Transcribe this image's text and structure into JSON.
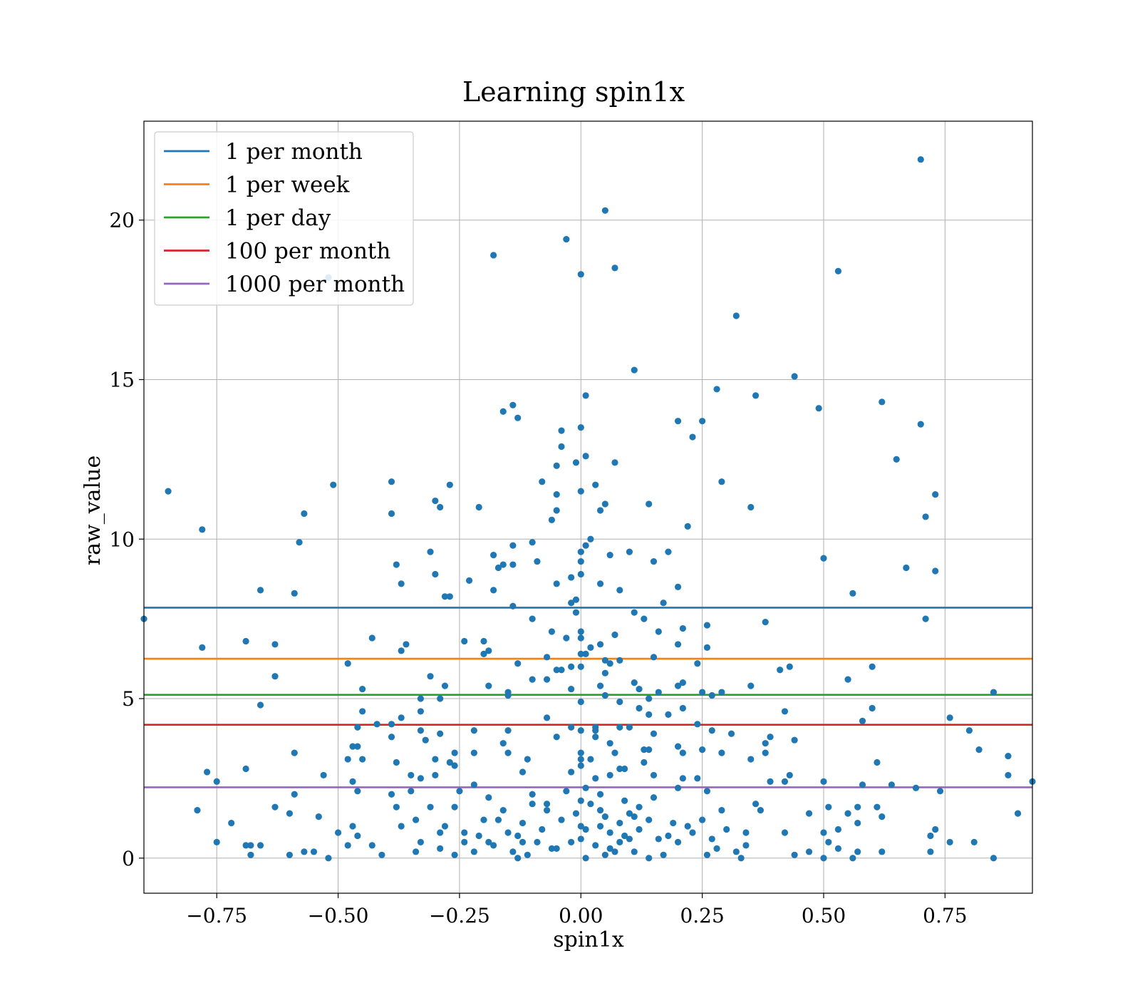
{
  "chart_data": {
    "type": "scatter",
    "title": "Learning spin1x",
    "xlabel": "spin1x",
    "ylabel": "raw_value",
    "xlim": [
      -0.9,
      0.93
    ],
    "ylim": [
      -1.1,
      23.1
    ],
    "xticks": [
      -0.75,
      -0.5,
      -0.25,
      0.0,
      0.25,
      0.5,
      0.75
    ],
    "xtick_labels": [
      "−0.75",
      "−0.50",
      "−0.25",
      "0.00",
      "0.25",
      "0.50",
      "0.75"
    ],
    "yticks": [
      0,
      5,
      10,
      15,
      20
    ],
    "ytick_labels": [
      "0",
      "5",
      "10",
      "15",
      "20"
    ],
    "grid": true,
    "legend_position": "top-left",
    "marker_color": "#1f77b4",
    "hlines": [
      {
        "name": "1 per month",
        "y": 7.85,
        "color": "#1f77b4"
      },
      {
        "name": "1 per week",
        "y": 6.25,
        "color": "#ff7f0e"
      },
      {
        "name": "1 per day",
        "y": 5.12,
        "color": "#2ca02c"
      },
      {
        "name": "100 per month",
        "y": 4.18,
        "color": "#d62728"
      },
      {
        "name": "1000 per month",
        "y": 2.22,
        "color": "#9467bd"
      }
    ],
    "points": [
      [
        0.7,
        21.9
      ],
      [
        0.05,
        20.3
      ],
      [
        -0.03,
        19.4
      ],
      [
        -0.18,
        18.9
      ],
      [
        0.07,
        18.5
      ],
      [
        0.0,
        18.3
      ],
      [
        0.53,
        18.4
      ],
      [
        -0.52,
        18.2
      ],
      [
        0.32,
        17.0
      ],
      [
        0.11,
        15.3
      ],
      [
        0.44,
        15.1
      ],
      [
        0.01,
        14.5
      ],
      [
        0.36,
        14.5
      ],
      [
        0.28,
        14.7
      ],
      [
        0.49,
        14.1
      ],
      [
        0.62,
        14.3
      ],
      [
        -0.14,
        14.2
      ],
      [
        -0.16,
        14.0
      ],
      [
        -0.13,
        13.8
      ],
      [
        0.2,
        13.7
      ],
      [
        0.25,
        13.7
      ],
      [
        0.7,
        13.6
      ],
      [
        -0.04,
        13.4
      ],
      [
        0.0,
        13.5
      ],
      [
        0.23,
        13.2
      ],
      [
        -0.04,
        12.9
      ],
      [
        0.65,
        12.5
      ],
      [
        0.01,
        12.6
      ],
      [
        -0.05,
        12.3
      ],
      [
        0.07,
        12.4
      ],
      [
        -0.01,
        12.4
      ],
      [
        0.29,
        11.8
      ],
      [
        -0.39,
        11.8
      ],
      [
        -0.27,
        11.7
      ],
      [
        -0.51,
        11.7
      ],
      [
        -0.08,
        11.8
      ],
      [
        0.03,
        11.7
      ],
      [
        -0.05,
        11.4
      ],
      [
        0.0,
        11.5
      ],
      [
        0.73,
        11.4
      ],
      [
        -0.85,
        11.5
      ],
      [
        -0.3,
        11.2
      ],
      [
        -0.29,
        11.0
      ],
      [
        -0.21,
        11.0
      ],
      [
        0.14,
        11.1
      ],
      [
        0.35,
        11.0
      ],
      [
        0.05,
        11.1
      ],
      [
        -0.05,
        10.9
      ],
      [
        -0.39,
        10.8
      ],
      [
        0.04,
        10.9
      ],
      [
        0.71,
        10.7
      ],
      [
        -0.57,
        10.8
      ],
      [
        -0.78,
        10.3
      ],
      [
        0.22,
        10.4
      ],
      [
        -0.06,
        10.6
      ],
      [
        -0.58,
        9.9
      ],
      [
        -0.1,
        9.9
      ],
      [
        0.02,
        10.0
      ],
      [
        0.01,
        9.8
      ],
      [
        -0.14,
        9.8
      ],
      [
        -0.31,
        9.6
      ],
      [
        0.18,
        9.6
      ],
      [
        0.06,
        9.5
      ],
      [
        0.1,
        9.6
      ],
      [
        -0.18,
        9.5
      ],
      [
        0.0,
        9.6
      ],
      [
        0.5,
        9.4
      ],
      [
        -0.09,
        9.3
      ],
      [
        0.0,
        9.3
      ],
      [
        0.15,
        9.3
      ],
      [
        -0.16,
        9.2
      ],
      [
        -0.14,
        9.2
      ],
      [
        -0.17,
        9.1
      ],
      [
        -0.38,
        9.2
      ],
      [
        0.67,
        9.1
      ],
      [
        0.73,
        9.0
      ],
      [
        -0.3,
        8.9
      ],
      [
        0.0,
        8.9
      ],
      [
        -0.02,
        8.8
      ],
      [
        -0.37,
        8.6
      ],
      [
        -0.23,
        8.7
      ],
      [
        -0.05,
        8.6
      ],
      [
        0.04,
        8.6
      ],
      [
        -0.66,
        8.4
      ],
      [
        -0.59,
        8.3
      ],
      [
        -0.18,
        8.4
      ],
      [
        0.08,
        8.4
      ],
      [
        0.2,
        8.5
      ],
      [
        0.56,
        8.3
      ],
      [
        -0.28,
        8.2
      ],
      [
        -0.27,
        8.2
      ],
      [
        -0.02,
        8.0
      ],
      [
        -0.01,
        8.1
      ],
      [
        0.17,
        8.0
      ],
      [
        -0.14,
        7.9
      ],
      [
        -0.01,
        7.7
      ],
      [
        0.11,
        7.7
      ],
      [
        -0.9,
        7.5
      ],
      [
        -0.1,
        7.5
      ],
      [
        0.13,
        7.5
      ],
      [
        0.71,
        7.5
      ],
      [
        0.38,
        7.4
      ],
      [
        0.26,
        7.3
      ],
      [
        -0.06,
        7.1
      ],
      [
        0.0,
        7.1
      ],
      [
        0.16,
        7.1
      ],
      [
        0.21,
        7.2
      ],
      [
        0.07,
        7.0
      ],
      [
        -0.03,
        6.9
      ],
      [
        0.0,
        6.9
      ],
      [
        -0.43,
        6.9
      ],
      [
        -0.2,
        6.8
      ],
      [
        -0.69,
        6.8
      ],
      [
        -0.63,
        6.7
      ],
      [
        -0.36,
        6.7
      ],
      [
        -0.24,
        6.8
      ],
      [
        0.04,
        6.7
      ],
      [
        0.02,
        6.6
      ],
      [
        0.2,
        6.7
      ],
      [
        0.26,
        6.6
      ],
      [
        -0.78,
        6.6
      ],
      [
        -0.37,
        6.5
      ],
      [
        -0.19,
        6.5
      ],
      [
        -0.2,
        6.4
      ],
      [
        0.0,
        6.4
      ],
      [
        0.01,
        6.4
      ],
      [
        0.05,
        6.2
      ],
      [
        -0.07,
        6.3
      ],
      [
        0.08,
        6.2
      ],
      [
        0.15,
        6.3
      ],
      [
        0.06,
        6.1
      ],
      [
        -0.48,
        6.1
      ],
      [
        -0.13,
        6.1
      ],
      [
        0.24,
        6.1
      ],
      [
        -0.02,
        6.0
      ],
      [
        0.0,
        6.0
      ],
      [
        0.43,
        6.0
      ],
      [
        0.41,
        5.9
      ],
      [
        0.6,
        6.0
      ],
      [
        -0.05,
        5.9
      ],
      [
        -0.04,
        5.9
      ],
      [
        0.05,
        5.8
      ],
      [
        -0.63,
        5.7
      ],
      [
        -0.31,
        5.7
      ],
      [
        -0.1,
        5.6
      ],
      [
        -0.07,
        5.6
      ],
      [
        0.55,
        5.6
      ],
      [
        0.11,
        5.5
      ],
      [
        0.21,
        5.5
      ],
      [
        -0.19,
        5.4
      ],
      [
        -0.28,
        5.4
      ],
      [
        0.04,
        5.4
      ],
      [
        0.2,
        5.4
      ],
      [
        0.35,
        5.4
      ],
      [
        -0.45,
        5.3
      ],
      [
        -0.02,
        5.3
      ],
      [
        0.12,
        5.3
      ],
      [
        0.25,
        5.2
      ],
      [
        0.29,
        5.2
      ],
      [
        0.16,
        5.2
      ],
      [
        -0.15,
        5.2
      ],
      [
        -0.15,
        5.1
      ],
      [
        0.27,
        5.1
      ],
      [
        0.85,
        5.2
      ],
      [
        -0.33,
        5.0
      ],
      [
        0.14,
        5.0
      ],
      [
        -0.29,
        5.0
      ],
      [
        0.0,
        4.9
      ],
      [
        0.05,
        5.1
      ],
      [
        0.08,
        4.9
      ],
      [
        -0.66,
        4.8
      ],
      [
        -0.33,
        4.6
      ],
      [
        -0.45,
        4.6
      ],
      [
        0.12,
        4.7
      ],
      [
        0.21,
        4.7
      ],
      [
        0.42,
        4.6
      ],
      [
        0.6,
        4.7
      ],
      [
        0.18,
        4.5
      ],
      [
        -0.37,
        4.4
      ],
      [
        -0.07,
        4.4
      ],
      [
        0.14,
        4.5
      ],
      [
        0.58,
        4.3
      ],
      [
        0.76,
        4.4
      ],
      [
        -0.42,
        4.2
      ],
      [
        -0.46,
        4.1
      ],
      [
        -0.39,
        4.2
      ],
      [
        0.24,
        4.2
      ],
      [
        0.08,
        4.1
      ],
      [
        -0.22,
        4.0
      ],
      [
        -0.02,
        4.1
      ],
      [
        0.03,
        4.1
      ],
      [
        0.1,
        4.1
      ],
      [
        -0.33,
        4.0
      ],
      [
        -0.15,
        4.0
      ],
      [
        0.0,
        4.0
      ],
      [
        0.03,
        4.0
      ],
      [
        0.27,
        4.0
      ],
      [
        0.31,
        3.9
      ],
      [
        0.15,
        3.9
      ],
      [
        0.8,
        4.0
      ],
      [
        -0.39,
        3.8
      ],
      [
        -0.29,
        3.9
      ],
      [
        -0.05,
        3.8
      ],
      [
        0.03,
        3.8
      ],
      [
        0.06,
        3.6
      ],
      [
        0.39,
        3.8
      ],
      [
        0.44,
        3.7
      ],
      [
        -0.32,
        3.7
      ],
      [
        -0.47,
        3.5
      ],
      [
        -0.46,
        3.5
      ],
      [
        -0.16,
        3.6
      ],
      [
        0.13,
        3.4
      ],
      [
        0.2,
        3.5
      ],
      [
        0.25,
        3.4
      ],
      [
        0.38,
        3.6
      ],
      [
        -0.59,
        3.3
      ],
      [
        -0.26,
        3.3
      ],
      [
        -0.22,
        3.3
      ],
      [
        -0.15,
        3.3
      ],
      [
        0.0,
        3.3
      ],
      [
        0.07,
        3.3
      ],
      [
        0.14,
        3.4
      ],
      [
        0.21,
        3.3
      ],
      [
        0.29,
        3.3
      ],
      [
        0.38,
        3.3
      ],
      [
        0.82,
        3.4
      ],
      [
        0.88,
        3.2
      ],
      [
        -0.48,
        3.1
      ],
      [
        -0.45,
        3.1
      ],
      [
        -0.3,
        3.1
      ],
      [
        -0.11,
        3.1
      ],
      [
        0.0,
        3.1
      ],
      [
        0.02,
        3.1
      ],
      [
        0.35,
        3.1
      ],
      [
        0.13,
        3.0
      ],
      [
        -0.38,
        3.0
      ],
      [
        -0.27,
        3.0
      ],
      [
        0.61,
        3.0
      ],
      [
        0.0,
        2.9
      ],
      [
        0.09,
        2.8
      ],
      [
        -0.69,
        2.8
      ],
      [
        -0.26,
        2.9
      ],
      [
        0.08,
        2.8
      ],
      [
        -0.77,
        2.7
      ],
      [
        -0.35,
        2.6
      ],
      [
        -0.53,
        2.6
      ],
      [
        -0.3,
        2.6
      ],
      [
        -0.12,
        2.7
      ],
      [
        -0.02,
        2.7
      ],
      [
        0.06,
        2.6
      ],
      [
        0.15,
        2.6
      ],
      [
        0.43,
        2.6
      ],
      [
        0.88,
        2.6
      ],
      [
        -0.75,
        2.4
      ],
      [
        -0.47,
        2.4
      ],
      [
        -0.33,
        2.5
      ],
      [
        0.03,
        2.5
      ],
      [
        0.21,
        2.5
      ],
      [
        0.24,
        2.5
      ],
      [
        0.39,
        2.4
      ],
      [
        0.42,
        2.4
      ],
      [
        0.5,
        2.4
      ],
      [
        0.64,
        2.3
      ],
      [
        0.58,
        2.3
      ],
      [
        0.69,
        2.2
      ],
      [
        -0.22,
        2.3
      ],
      [
        0.01,
        2.2
      ],
      [
        0.2,
        2.2
      ],
      [
        0.93,
        2.4
      ],
      [
        -0.46,
        2.1
      ],
      [
        -0.39,
        2.0
      ],
      [
        -0.35,
        2.1
      ],
      [
        -0.25,
        2.1
      ],
      [
        -0.1,
        2.0
      ],
      [
        0.04,
        2.0
      ],
      [
        0.26,
        2.1
      ],
      [
        0.74,
        2.1
      ],
      [
        -0.59,
        2.0
      ],
      [
        -0.19,
        1.9
      ],
      [
        0.15,
        1.9
      ],
      [
        0.09,
        1.8
      ],
      [
        -0.07,
        1.7
      ],
      [
        0.36,
        1.7
      ],
      [
        -0.63,
        1.6
      ],
      [
        -0.38,
        1.6
      ],
      [
        -0.31,
        1.6
      ],
      [
        -0.26,
        1.6
      ],
      [
        0.12,
        1.6
      ],
      [
        0.51,
        1.6
      ],
      [
        0.57,
        1.6
      ],
      [
        0.61,
        1.6
      ],
      [
        -0.79,
        1.5
      ],
      [
        -0.6,
        1.4
      ],
      [
        -0.16,
        1.5
      ],
      [
        0.29,
        1.5
      ],
      [
        0.37,
        1.5
      ],
      [
        0.47,
        1.4
      ],
      [
        0.55,
        1.4
      ],
      [
        0.9,
        1.4
      ],
      [
        -0.54,
        1.3
      ],
      [
        -0.34,
        1.2
      ],
      [
        -0.17,
        1.2
      ],
      [
        0.11,
        1.3
      ],
      [
        0.25,
        1.2
      ],
      [
        0.62,
        1.3
      ],
      [
        -0.72,
        1.1
      ],
      [
        -0.47,
        1.0
      ],
      [
        -0.37,
        1.0
      ],
      [
        -0.12,
        1.1
      ],
      [
        0.0,
        1.0
      ],
      [
        0.04,
        1.0
      ],
      [
        0.22,
        1.0
      ],
      [
        0.57,
        1.1
      ],
      [
        0.73,
        0.9
      ],
      [
        -0.5,
        0.8
      ],
      [
        -0.29,
        0.8
      ],
      [
        -0.24,
        0.8
      ],
      [
        0.01,
        0.9
      ],
      [
        0.34,
        0.8
      ],
      [
        0.42,
        0.8
      ],
      [
        0.5,
        0.8
      ],
      [
        0.53,
        0.9
      ],
      [
        -0.46,
        0.7
      ],
      [
        -0.21,
        0.7
      ],
      [
        -0.13,
        0.7
      ],
      [
        0.09,
        0.7
      ],
      [
        0.18,
        0.7
      ],
      [
        0.72,
        0.7
      ],
      [
        -0.75,
        0.5
      ],
      [
        -0.68,
        0.4
      ],
      [
        -0.66,
        0.4
      ],
      [
        -0.43,
        0.4
      ],
      [
        -0.33,
        0.5
      ],
      [
        -0.19,
        0.5
      ],
      [
        -0.09,
        0.5
      ],
      [
        0.08,
        0.5
      ],
      [
        0.2,
        0.5
      ],
      [
        0.34,
        0.4
      ],
      [
        0.51,
        0.5
      ],
      [
        0.76,
        0.5
      ],
      [
        0.81,
        0.5
      ],
      [
        -0.69,
        0.4
      ],
      [
        -0.48,
        0.4
      ],
      [
        -0.29,
        0.3
      ],
      [
        -0.06,
        0.3
      ],
      [
        0.06,
        0.3
      ],
      [
        0.28,
        0.3
      ],
      [
        0.53,
        0.3
      ],
      [
        -0.57,
        0.2
      ],
      [
        -0.55,
        0.2
      ],
      [
        -0.34,
        0.2
      ],
      [
        -0.22,
        0.2
      ],
      [
        -0.14,
        0.2
      ],
      [
        0.11,
        0.2
      ],
      [
        0.32,
        0.2
      ],
      [
        0.47,
        0.2
      ],
      [
        0.57,
        0.2
      ],
      [
        0.62,
        0.2
      ],
      [
        0.72,
        0.2
      ],
      [
        -0.68,
        0.1
      ],
      [
        -0.6,
        0.1
      ],
      [
        -0.41,
        0.1
      ],
      [
        -0.26,
        0.1
      ],
      [
        -0.11,
        0.1
      ],
      [
        0.05,
        0.1
      ],
      [
        0.17,
        0.1
      ],
      [
        0.26,
        0.1
      ],
      [
        0.44,
        0.1
      ],
      [
        0.56,
        0.0
      ],
      [
        0.85,
        0.0
      ],
      [
        -0.52,
        0.0
      ],
      [
        -0.13,
        0.0
      ],
      [
        0.01,
        0.0
      ],
      [
        0.14,
        0.0
      ],
      [
        0.33,
        0.0
      ],
      [
        0.5,
        0.0
      ],
      [
        -0.05,
        0.3
      ],
      [
        -0.02,
        0.5
      ],
      [
        0.0,
        0.6
      ],
      [
        0.03,
        0.4
      ],
      [
        0.07,
        0.2
      ],
      [
        0.1,
        0.6
      ],
      [
        -0.08,
        0.9
      ],
      [
        -0.04,
        1.2
      ],
      [
        -0.01,
        1.4
      ],
      [
        0.02,
        1.7
      ],
      [
        0.05,
        1.3
      ],
      [
        0.08,
        1.1
      ],
      [
        0.12,
        0.9
      ],
      [
        0.16,
        0.6
      ],
      [
        -0.15,
        0.8
      ],
      [
        -0.2,
        1.2
      ],
      [
        -0.18,
        0.4
      ],
      [
        -0.12,
        0.5
      ],
      [
        0.19,
        1.1
      ],
      [
        0.23,
        0.8
      ],
      [
        0.27,
        0.6
      ],
      [
        0.3,
        0.9
      ],
      [
        -0.24,
        0.5
      ],
      [
        -0.28,
        1.0
      ],
      [
        0.0,
        1.8
      ],
      [
        -0.03,
        2.1
      ],
      [
        0.04,
        1.5
      ],
      [
        0.1,
        1.4
      ],
      [
        -0.07,
        1.5
      ],
      [
        0.14,
        1.2
      ],
      [
        -0.1,
        1.7
      ],
      [
        0.06,
        0.8
      ]
    ]
  }
}
